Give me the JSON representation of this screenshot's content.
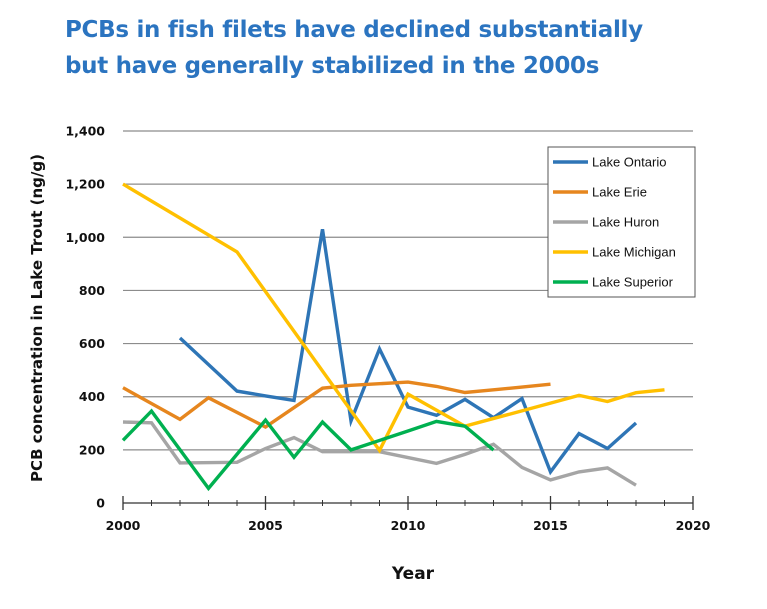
{
  "title": {
    "line1": "PCBs in fish filets have declined substantially",
    "line2": "but have generally stabilized in the 2000s"
  },
  "colors": {
    "title": "#2b74c0",
    "gridline": "#8c8c8c",
    "axis": "#333333"
  },
  "chart_data": {
    "type": "line",
    "title": "PCBs in fish filets have declined substantially but have generally stabilized in the 2000s",
    "xlabel": "Year",
    "ylabel": "PCB concentration in Lake Trout (ng/g)",
    "xlim": [
      2000,
      2020
    ],
    "ylim": [
      0,
      1400
    ],
    "xticks": [
      2000,
      2005,
      2010,
      2015,
      2020
    ],
    "xtick_labels": [
      "2000",
      "2005",
      "2010",
      "2015",
      "2020"
    ],
    "minor_xtick_step": 1,
    "yticks": [
      0,
      200,
      400,
      600,
      800,
      1000,
      1200,
      1400
    ],
    "ytick_labels": [
      "0",
      "200",
      "400",
      "600",
      "800",
      "1,000",
      "1,200",
      "1,400"
    ],
    "grid": "horizontal",
    "legend_position": "top-right",
    "series": [
      {
        "name": "Lake Ontario",
        "color": "#2e75b6",
        "points": [
          [
            2002,
            621
          ],
          [
            2004,
            421
          ],
          [
            2005,
            403
          ],
          [
            2006,
            386
          ],
          [
            2007,
            1030
          ],
          [
            2008,
            309
          ],
          [
            2009,
            580
          ],
          [
            2010,
            361
          ],
          [
            2011,
            330
          ],
          [
            2012,
            390
          ],
          [
            2013,
            321
          ],
          [
            2014,
            393
          ],
          [
            2015,
            117
          ],
          [
            2016,
            261
          ],
          [
            2017,
            205
          ],
          [
            2018,
            301
          ]
        ]
      },
      {
        "name": "Lake Erie",
        "color": "#e6861e",
        "points": [
          [
            2000,
            434
          ],
          [
            2002,
            315
          ],
          [
            2003,
            396
          ],
          [
            2005,
            286
          ],
          [
            2007,
            432
          ],
          [
            2008,
            443
          ],
          [
            2009,
            449
          ],
          [
            2010,
            455
          ],
          [
            2011,
            439
          ],
          [
            2012,
            416
          ],
          [
            2013,
            426
          ],
          [
            2014,
            436
          ],
          [
            2015,
            447
          ]
        ]
      },
      {
        "name": "Lake Huron",
        "color": "#a5a5a5",
        "points": [
          [
            2000,
            305
          ],
          [
            2001,
            302
          ],
          [
            2002,
            151
          ],
          [
            2004,
            153
          ],
          [
            2005,
            205
          ],
          [
            2006,
            246
          ],
          [
            2007,
            193
          ],
          [
            2009,
            193
          ],
          [
            2010,
            171
          ],
          [
            2011,
            149
          ],
          [
            2012,
            183
          ],
          [
            2013,
            221
          ],
          [
            2014,
            134
          ],
          [
            2015,
            87
          ],
          [
            2016,
            117
          ],
          [
            2017,
            132
          ],
          [
            2018,
            67
          ]
        ]
      },
      {
        "name": "Lake Michigan",
        "color": "#ffc000",
        "points": [
          [
            2000,
            1200
          ],
          [
            2004,
            945
          ],
          [
            2009,
            198
          ],
          [
            2010,
            410
          ],
          [
            2012,
            289
          ],
          [
            2015,
            376
          ],
          [
            2016,
            405
          ],
          [
            2017,
            382
          ],
          [
            2018,
            415
          ],
          [
            2019,
            426
          ]
        ]
      },
      {
        "name": "Lake Superior",
        "color": "#00b050",
        "points": [
          [
            2000,
            236
          ],
          [
            2001,
            346
          ],
          [
            2003,
            55
          ],
          [
            2005,
            312
          ],
          [
            2006,
            172
          ],
          [
            2007,
            305
          ],
          [
            2008,
            200
          ],
          [
            2010,
            271
          ],
          [
            2011,
            307
          ],
          [
            2012,
            289
          ],
          [
            2013,
            199
          ]
        ]
      }
    ]
  }
}
